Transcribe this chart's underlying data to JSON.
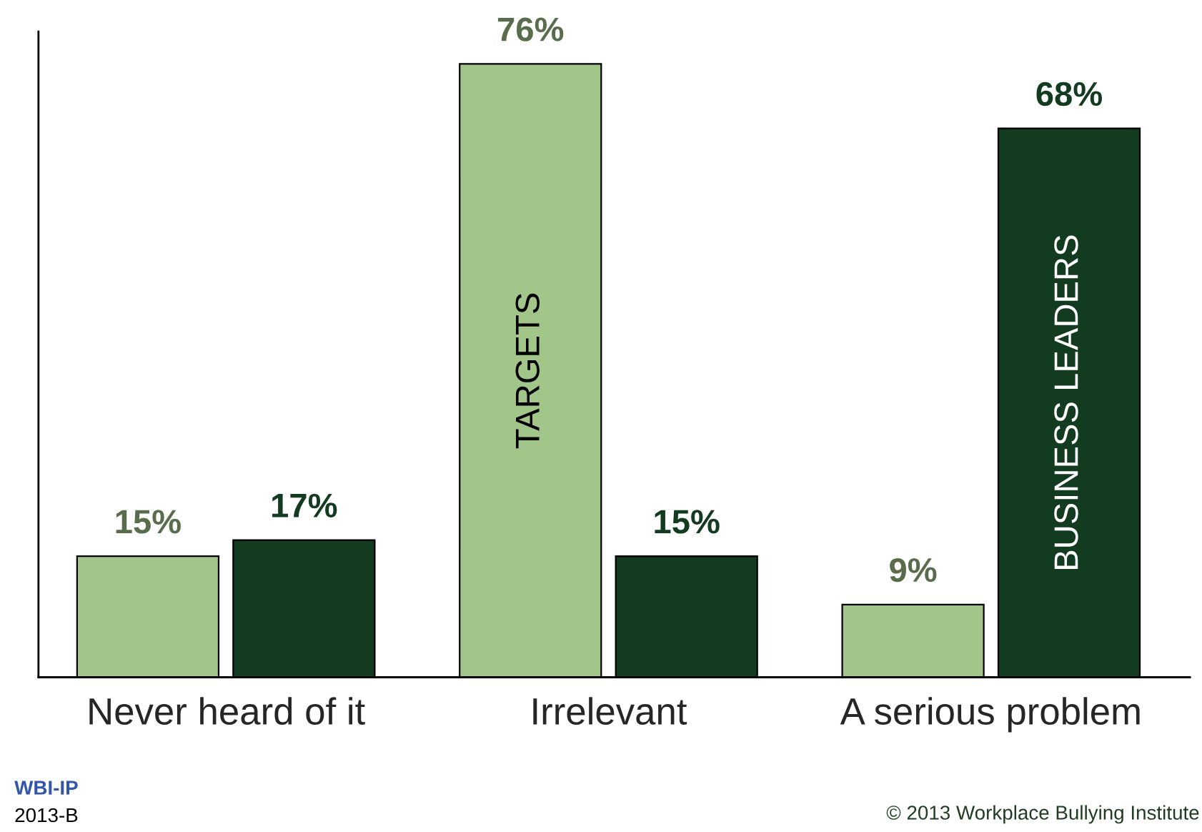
{
  "chart_data": {
    "type": "bar",
    "categories": [
      "Never heard of it",
      "Irrelevant",
      "A serious problem"
    ],
    "series": [
      {
        "name": "TARGETS",
        "color": "#a2c58a",
        "values": [
          15,
          76,
          9
        ],
        "value_labels": [
          "15%",
          "76%",
          "9%"
        ]
      },
      {
        "name": "BUSINESS LEADERS",
        "color": "#133b1f",
        "values": [
          17,
          15,
          68
        ],
        "value_labels": [
          "17%",
          "15%",
          "68%"
        ]
      }
    ],
    "ylim": [
      0,
      80
    ],
    "tick_labels": "x",
    "grid": false,
    "legend": false,
    "annotations": [
      "WBI-IP",
      "2013-B",
      "© 2013 Workplace Bullying Institute"
    ]
  }
}
